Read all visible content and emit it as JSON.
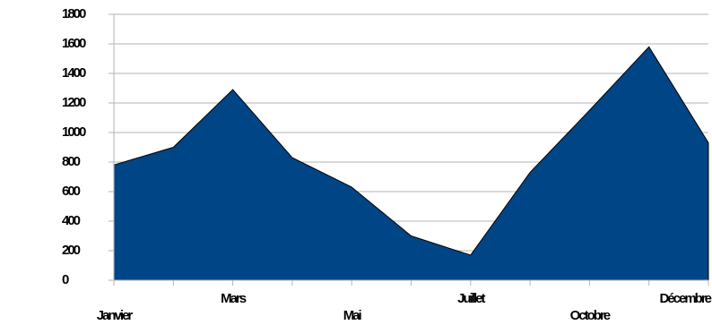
{
  "chart_data": {
    "type": "area",
    "categories": [
      "Janvier",
      null,
      "Mars",
      null,
      "Mai",
      null,
      "Juillet",
      null,
      "Octobre",
      null,
      "Décembre"
    ],
    "values": [
      780,
      900,
      1290,
      830,
      630,
      300,
      170,
      730,
      1150,
      1580,
      930
    ],
    "color": "#004586",
    "ylim": [
      0,
      1800
    ],
    "yticks": [
      0,
      200,
      400,
      600,
      800,
      1000,
      1200,
      1400,
      1600,
      1800
    ],
    "grid": true
  }
}
